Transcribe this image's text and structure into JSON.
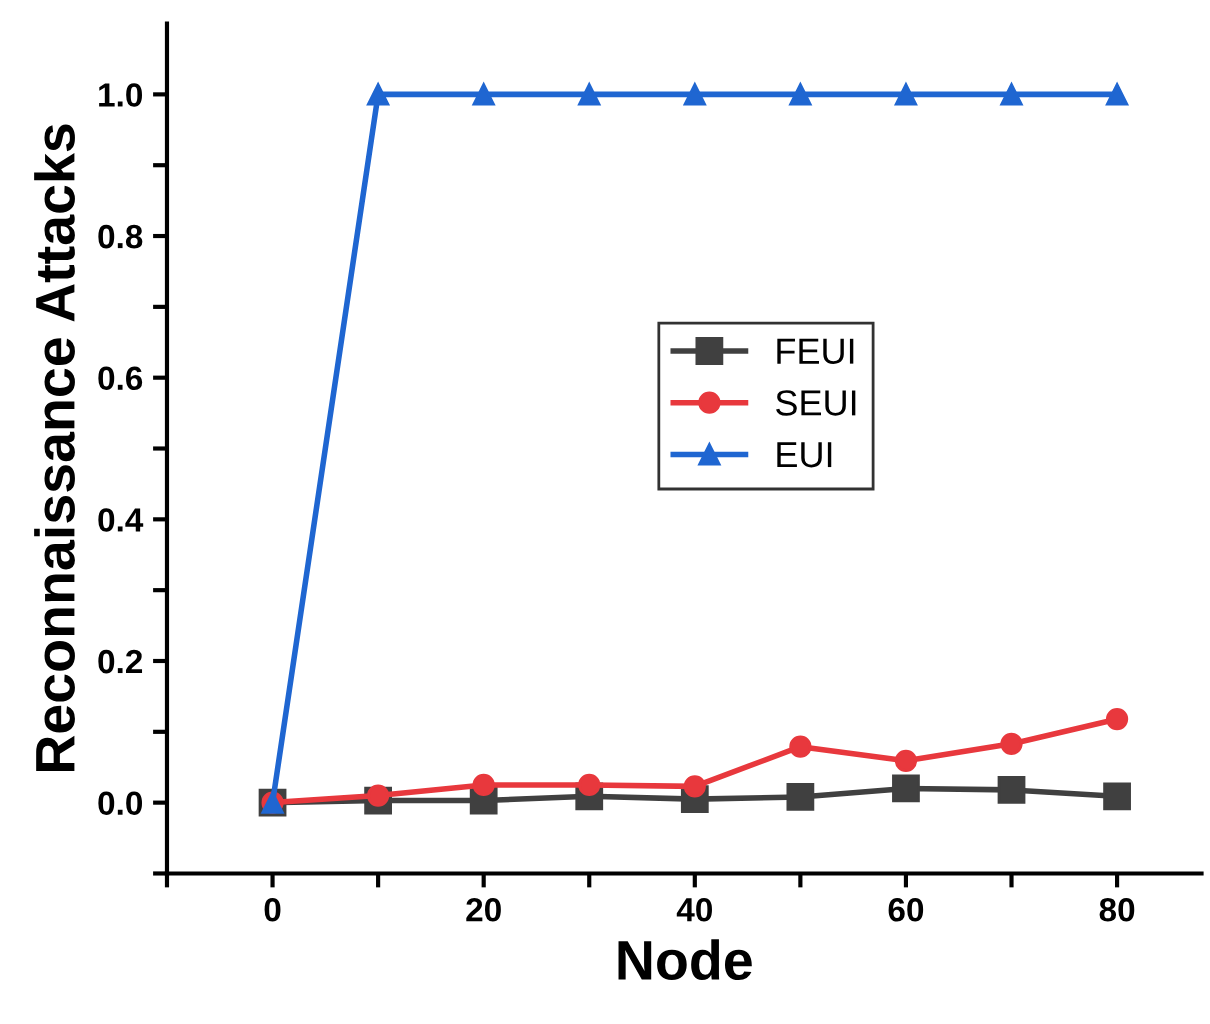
{
  "chart_data": {
    "type": "line",
    "xlabel": "Node",
    "ylabel": "Reconnaissance Attacks",
    "x": [
      0,
      10,
      20,
      30,
      40,
      50,
      60,
      70,
      80
    ],
    "series": [
      {
        "name": "FEUI",
        "color": "#404040",
        "marker": "square",
        "values": [
          0,
          0.003,
          0.003,
          0.009,
          0.005,
          0.008,
          0.02,
          0.018,
          0.009
        ]
      },
      {
        "name": "SEUI",
        "color": "#e8383d",
        "marker": "circle",
        "values": [
          0,
          0.01,
          0.025,
          0.025,
          0.023,
          0.079,
          0.059,
          0.083,
          0.118
        ]
      },
      {
        "name": "EUI",
        "color": "#1f66d1",
        "marker": "triangle",
        "values": [
          0,
          1,
          1,
          1,
          1,
          1,
          1,
          1,
          1
        ]
      }
    ],
    "xlim": [
      -10,
      88
    ],
    "ylim": [
      -0.1,
      1.1
    ],
    "xticks": [
      {
        "value": -10,
        "label": null
      },
      0,
      {
        "value": 10,
        "label": null
      },
      20,
      {
        "value": 30,
        "label": null
      },
      40,
      {
        "value": 50,
        "label": null
      },
      60,
      {
        "value": 70,
        "label": null
      },
      80
    ],
    "yticks": [
      {
        "value": -0.1,
        "label": null
      },
      {
        "value": 0,
        "label": "0.0"
      },
      {
        "value": 0.1,
        "label": null
      },
      0.2,
      {
        "value": 0.3,
        "label": null
      },
      0.4,
      {
        "value": 0.5,
        "label": null
      },
      0.6,
      {
        "value": 0.7,
        "label": null
      },
      0.8,
      {
        "value": 0.9,
        "label": null
      },
      {
        "value": 1,
        "label": "1.0"
      }
    ],
    "grid": false,
    "legend": "center right",
    "line_style": "solid"
  }
}
